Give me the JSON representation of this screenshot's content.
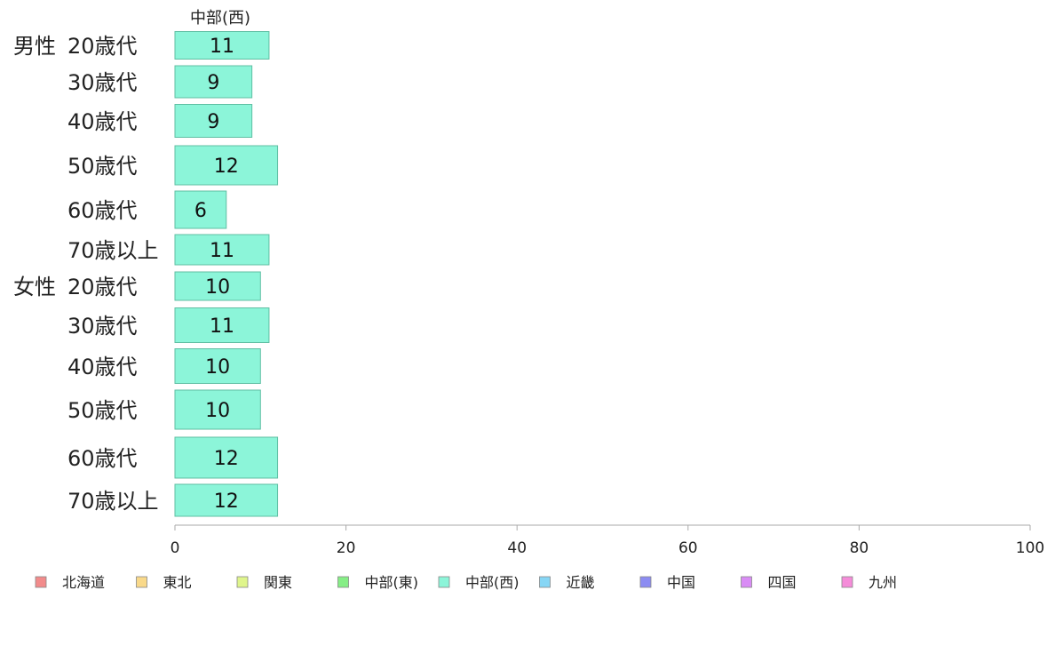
{
  "chart_data": {
    "type": "bar",
    "orientation": "horizontal",
    "panel_title": "中部(西)",
    "groups": [
      {
        "group": "男性",
        "categories": [
          "20歳代",
          "30歳代",
          "40歳代",
          "50歳代",
          "60歳代",
          "70歳以上"
        ],
        "values": [
          11,
          9,
          9,
          12,
          6,
          11
        ]
      },
      {
        "group": "女性",
        "categories": [
          "20歳代",
          "30歳代",
          "40歳代",
          "50歳代",
          "60歳代",
          "70歳以上"
        ],
        "values": [
          10,
          11,
          10,
          10,
          12,
          12
        ]
      }
    ],
    "xlim": [
      0,
      100
    ],
    "xticks": [
      0,
      20,
      40,
      60,
      80,
      100
    ],
    "grid": false,
    "legend_position": "bottom",
    "series": [
      {
        "name": "北海道",
        "color": "#f28b8b"
      },
      {
        "name": "東北",
        "color": "#f9d98a"
      },
      {
        "name": "関東",
        "color": "#dff58c"
      },
      {
        "name": "中部(東)",
        "color": "#86ee86"
      },
      {
        "name": "中部(西)",
        "color": "#8cf5d9"
      },
      {
        "name": "近畿",
        "color": "#86d6f5"
      },
      {
        "name": "中国",
        "color": "#8c8cf2"
      },
      {
        "name": "四国",
        "color": "#d98cf5"
      },
      {
        "name": "九州",
        "color": "#f58cd9"
      }
    ],
    "active_series": "中部(西)",
    "bar_color": "#8cf5d9",
    "bar_stroke": "#5fbfa3"
  }
}
